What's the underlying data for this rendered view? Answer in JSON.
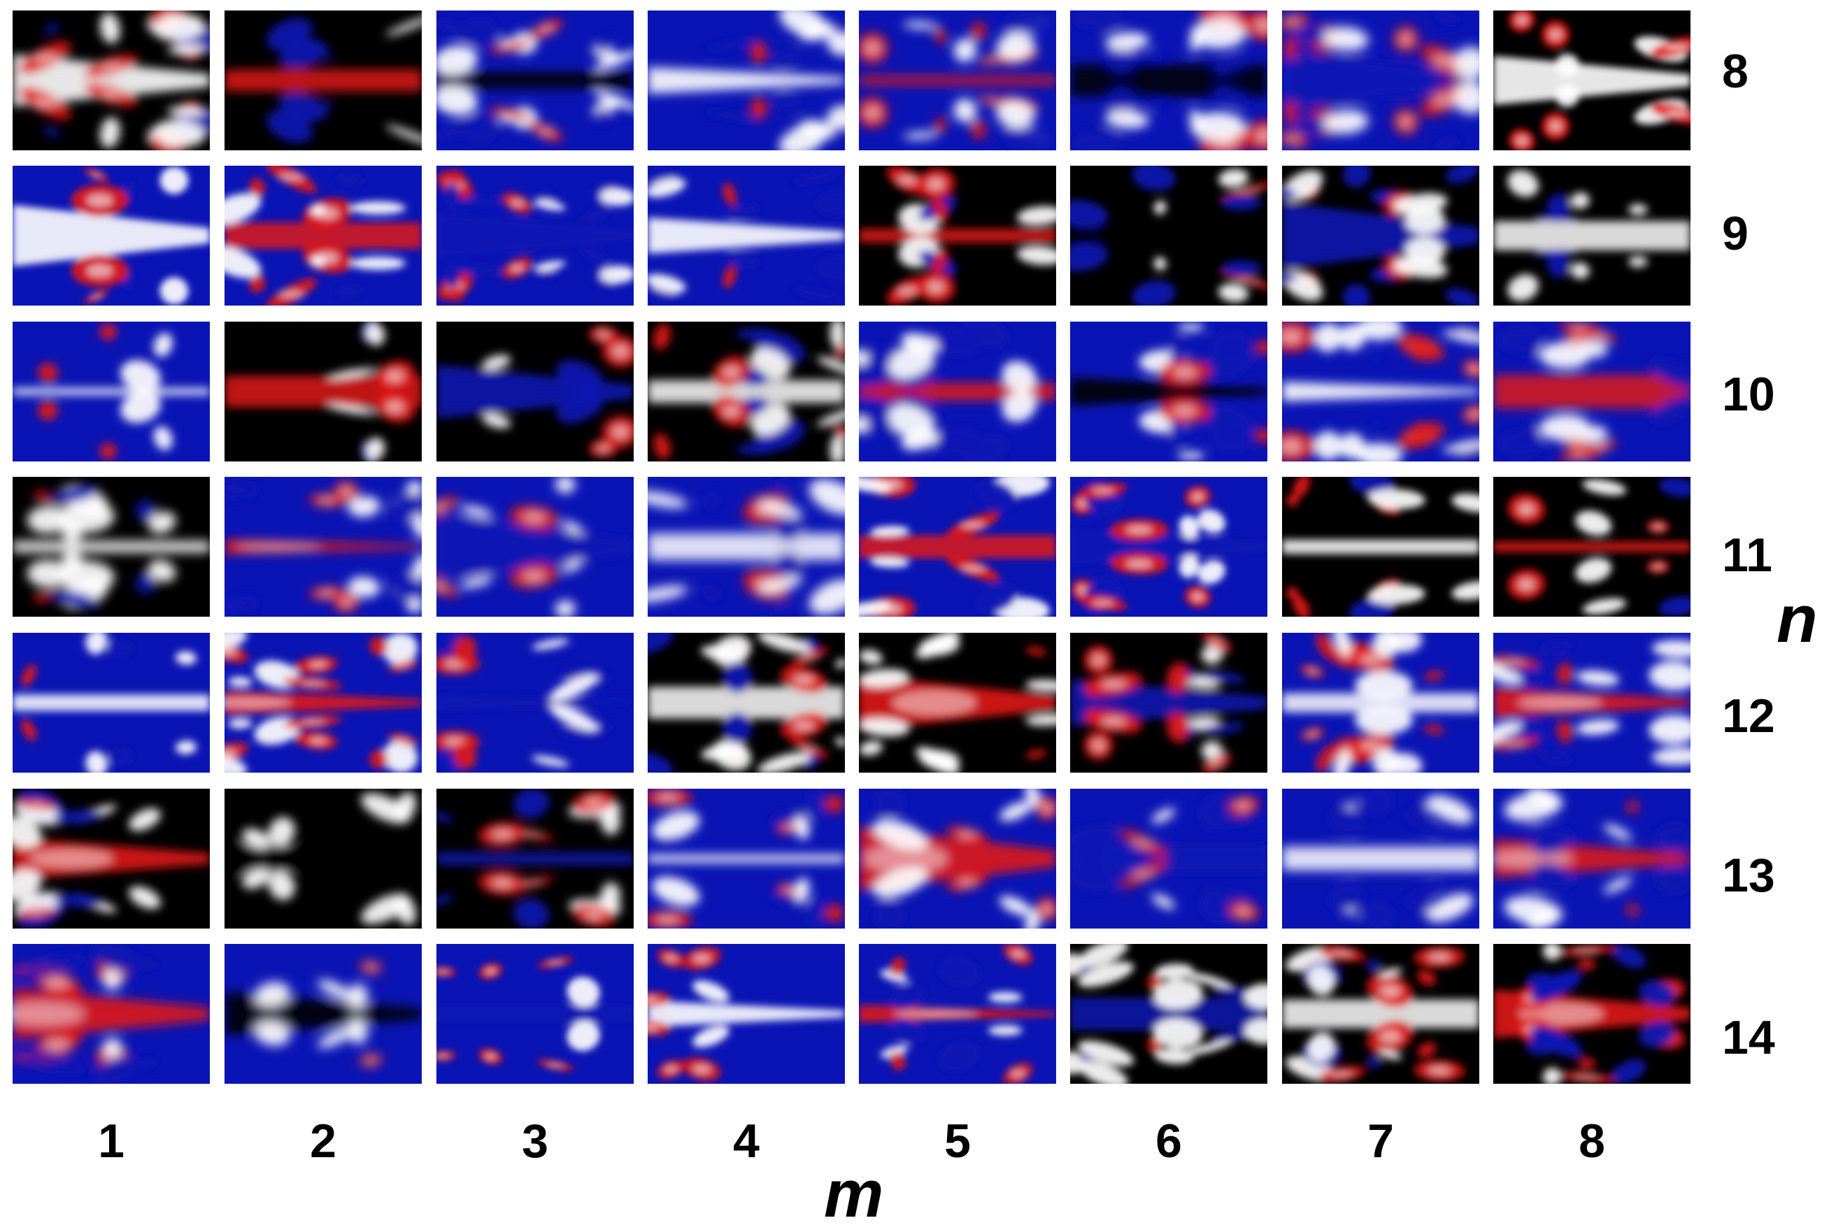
{
  "figure": {
    "row_values": [
      "8",
      "9",
      "10",
      "11",
      "12",
      "13",
      "14"
    ],
    "col_values": [
      "1",
      "2",
      "3",
      "4",
      "5",
      "6",
      "7",
      "8"
    ],
    "row_axis_title": "n",
    "col_axis_title": "m",
    "colormap": {
      "low": "#000000",
      "mid_low": "#0a14b4",
      "mid": "#ffffff",
      "high": "#e01818"
    },
    "panel_count": 56
  }
}
